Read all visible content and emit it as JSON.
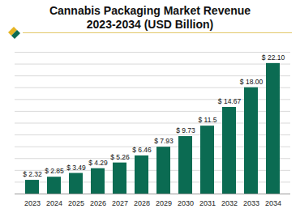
{
  "chart_data": {
    "type": "bar",
    "title": "Cannabis Packaging Market Revenue 2023-2034 (USD Billion)",
    "categories": [
      "2023",
      "2024",
      "2025",
      "2026",
      "2027",
      "2028",
      "2029",
      "2030",
      "2031",
      "2032",
      "2033",
      "2034"
    ],
    "values": [
      2.32,
      2.85,
      3.49,
      4.29,
      5.26,
      6.46,
      7.93,
      9.73,
      11.5,
      14.67,
      18.0,
      22.1
    ],
    "value_labels": [
      "$ 2.32",
      "$ 2.85",
      "$ 3.49",
      "$ 4.29",
      "$ 5.26",
      "$ 6.46",
      "$ 7.93",
      "$ 9.73",
      "$ 11.5",
      "$ 14.67",
      "$ 18.00",
      "$ 22.10"
    ],
    "color": "#0b6b52",
    "ylim": [
      0,
      24
    ],
    "yticks": [
      0,
      2,
      4,
      6,
      8,
      10,
      12,
      14,
      16,
      18,
      20,
      22,
      24
    ],
    "grid": true,
    "data_labels": true,
    "tick_labels": "x"
  }
}
